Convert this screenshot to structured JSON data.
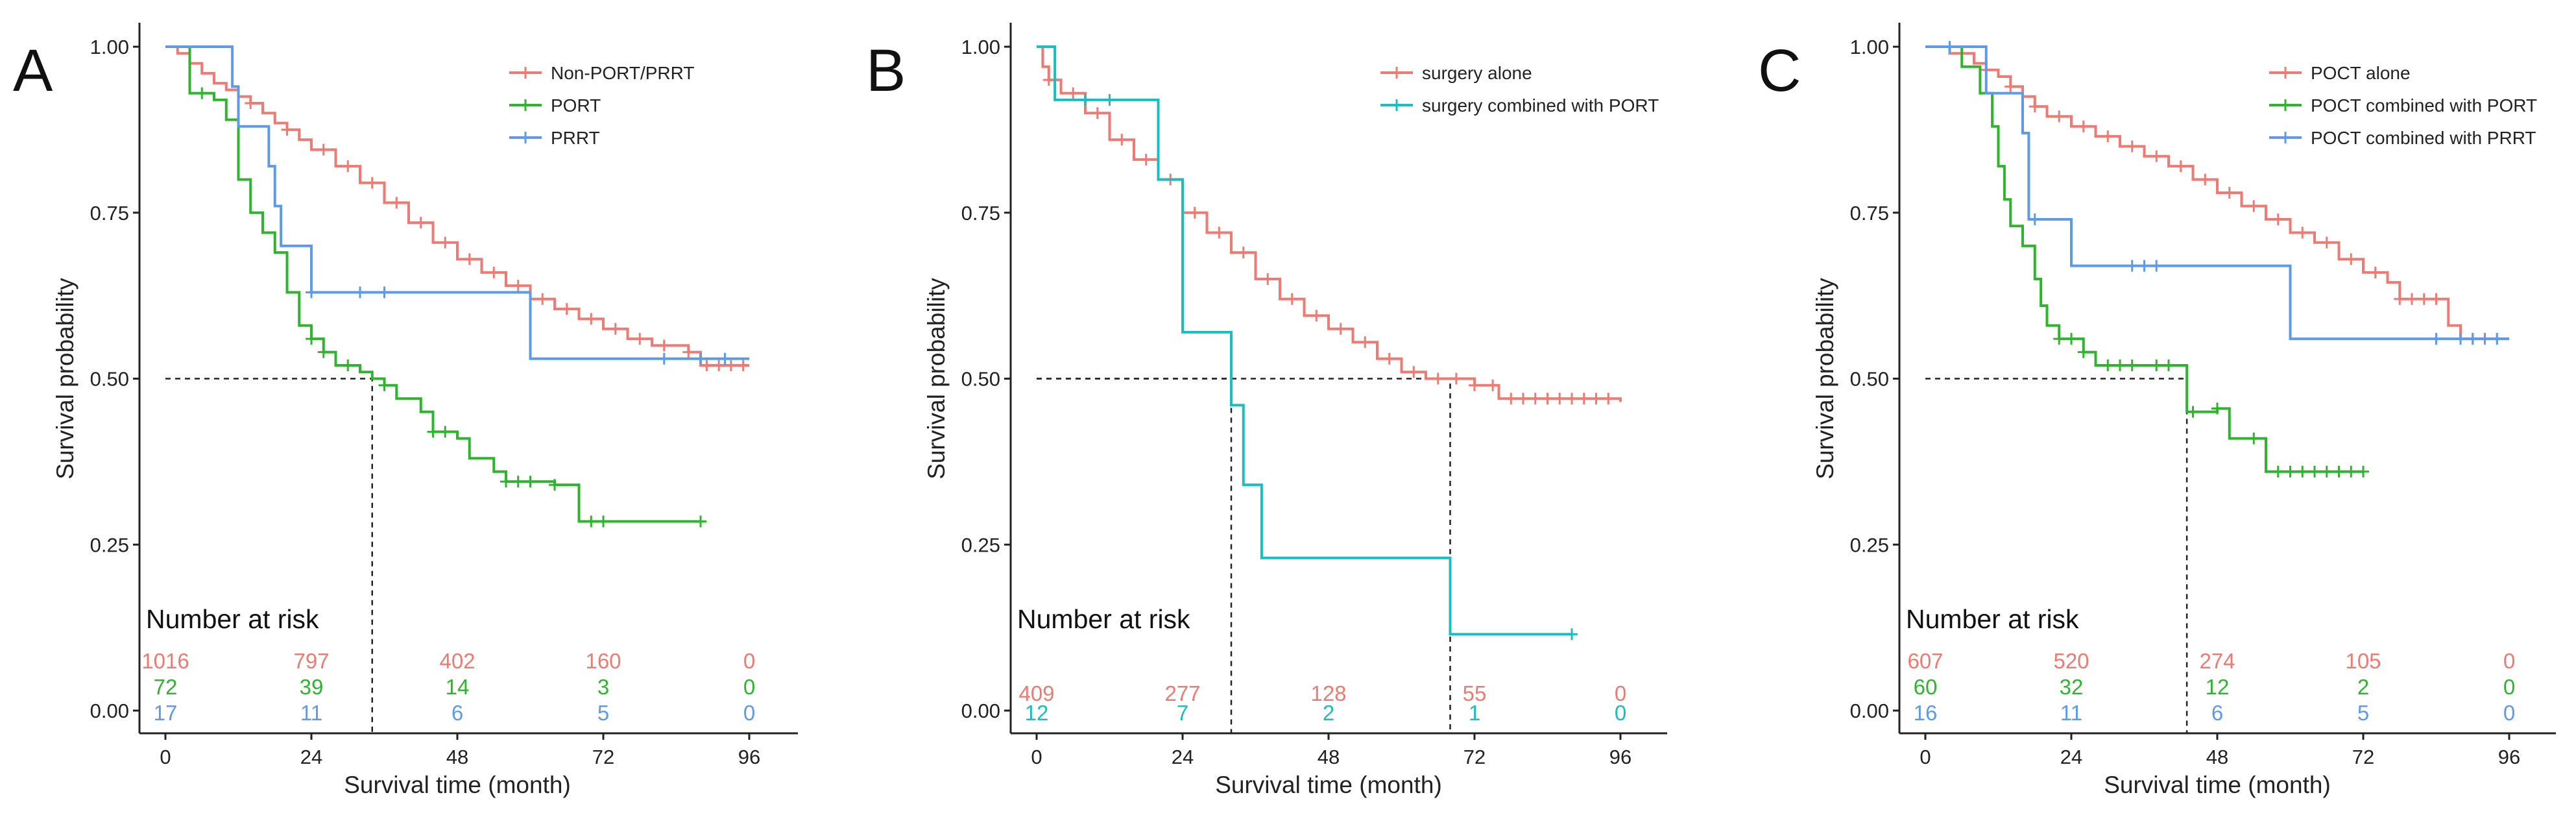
{
  "chart_data": [
    {
      "panel": "A",
      "type": "line",
      "subtype": "kaplan-meier",
      "xlabel": "Survival time (month)",
      "ylabel": "Survival probability",
      "xticks": [
        0,
        24,
        48,
        72,
        96
      ],
      "yticks": [
        "0.00",
        "0.25",
        "0.50",
        "0.75",
        "1.00"
      ],
      "xlim": [
        0,
        96
      ],
      "ylim": [
        0,
        1
      ],
      "legend_position": "top-right",
      "risk_table_title": "Number at risk",
      "risk_times": [
        0,
        24,
        48,
        72,
        96
      ],
      "median_lines": [
        {
          "y": 0.5,
          "x": 34
        }
      ],
      "series": [
        {
          "name": "Non-PORT/PRRT",
          "color": "#f07a72",
          "steps": [
            [
              0,
              1.0
            ],
            [
              2,
              0.99
            ],
            [
              4,
              0.975
            ],
            [
              6,
              0.96
            ],
            [
              8,
              0.945
            ],
            [
              10,
              0.935
            ],
            [
              12,
              0.925
            ],
            [
              14,
              0.915
            ],
            [
              16,
              0.9
            ],
            [
              18,
              0.885
            ],
            [
              20,
              0.875
            ],
            [
              22,
              0.86
            ],
            [
              24,
              0.845
            ],
            [
              28,
              0.82
            ],
            [
              32,
              0.795
            ],
            [
              36,
              0.765
            ],
            [
              40,
              0.735
            ],
            [
              44,
              0.705
            ],
            [
              48,
              0.68
            ],
            [
              52,
              0.66
            ],
            [
              56,
              0.64
            ],
            [
              60,
              0.62
            ],
            [
              64,
              0.605
            ],
            [
              68,
              0.59
            ],
            [
              72,
              0.575
            ],
            [
              76,
              0.56
            ],
            [
              80,
              0.55
            ],
            [
              86,
              0.54
            ],
            [
              88,
              0.52
            ],
            [
              96,
              0.52
            ]
          ],
          "censors": [
            14,
            20,
            26,
            30,
            34,
            38,
            42,
            46,
            50,
            54,
            58,
            62,
            66,
            70,
            74,
            78,
            82,
            86,
            89,
            91,
            93,
            95
          ],
          "at_risk": [
            "1016",
            "797",
            "402",
            "160",
            "0"
          ]
        },
        {
          "name": "PORT",
          "color": "#2db52d",
          "steps": [
            [
              0,
              1.0
            ],
            [
              4,
              0.93
            ],
            [
              8,
              0.92
            ],
            [
              10,
              0.89
            ],
            [
              12,
              0.8
            ],
            [
              14,
              0.75
            ],
            [
              16,
              0.72
            ],
            [
              18,
              0.69
            ],
            [
              20,
              0.63
            ],
            [
              22,
              0.58
            ],
            [
              24,
              0.56
            ],
            [
              26,
              0.54
            ],
            [
              28,
              0.52
            ],
            [
              32,
              0.51
            ],
            [
              34,
              0.5
            ],
            [
              36,
              0.49
            ],
            [
              38,
              0.47
            ],
            [
              42,
              0.45
            ],
            [
              44,
              0.42
            ],
            [
              48,
              0.41
            ],
            [
              50,
              0.38
            ],
            [
              54,
              0.36
            ],
            [
              56,
              0.345
            ],
            [
              64,
              0.34
            ],
            [
              68,
              0.285
            ],
            [
              88,
              0.285
            ]
          ],
          "censors": [
            6,
            24,
            26,
            30,
            36,
            44,
            46,
            56,
            58,
            60,
            64,
            70,
            72,
            88
          ],
          "at_risk": [
            "72",
            "39",
            "14",
            "3",
            "0"
          ]
        },
        {
          "name": "PRRT",
          "color": "#5d9bea",
          "steps": [
            [
              0,
              1.0
            ],
            [
              11,
              0.94
            ],
            [
              12,
              0.88
            ],
            [
              17,
              0.82
            ],
            [
              18,
              0.76
            ],
            [
              19,
              0.7
            ],
            [
              24,
              0.63
            ],
            [
              59,
              0.63
            ],
            [
              60,
              0.53
            ],
            [
              96,
              0.53
            ]
          ],
          "censors": [
            24,
            32,
            36,
            82,
            88,
            92
          ],
          "at_risk": [
            "17",
            "11",
            "6",
            "5",
            "0"
          ]
        }
      ]
    },
    {
      "panel": "B",
      "type": "line",
      "subtype": "kaplan-meier",
      "xlabel": "Survival time (month)",
      "ylabel": "Survival probability",
      "xticks": [
        0,
        24,
        48,
        72,
        96
      ],
      "yticks": [
        "0.00",
        "0.25",
        "0.50",
        "0.75",
        "1.00"
      ],
      "xlim": [
        0,
        96
      ],
      "ylim": [
        0,
        1
      ],
      "legend_position": "top-right",
      "risk_table_title": "Number at risk",
      "risk_times": [
        0,
        24,
        48,
        72,
        96
      ],
      "median_lines": [
        {
          "y": 0.5,
          "x": 32
        },
        {
          "y": 0.5,
          "x": 68
        }
      ],
      "series": [
        {
          "name": "surgery alone",
          "color": "#f07a72",
          "steps": [
            [
              0,
              1.0
            ],
            [
              1,
              0.97
            ],
            [
              2,
              0.95
            ],
            [
              4,
              0.93
            ],
            [
              8,
              0.9
            ],
            [
              12,
              0.86
            ],
            [
              16,
              0.83
            ],
            [
              20,
              0.8
            ],
            [
              24,
              0.75
            ],
            [
              28,
              0.72
            ],
            [
              32,
              0.69
            ],
            [
              36,
              0.65
            ],
            [
              40,
              0.62
            ],
            [
              44,
              0.595
            ],
            [
              48,
              0.575
            ],
            [
              52,
              0.555
            ],
            [
              56,
              0.53
            ],
            [
              60,
              0.51
            ],
            [
              64,
              0.5
            ],
            [
              72,
              0.49
            ],
            [
              76,
              0.47
            ],
            [
              96,
              0.465
            ]
          ],
          "censors": [
            2,
            6,
            10,
            14,
            18,
            22,
            26,
            30,
            34,
            38,
            42,
            46,
            50,
            54,
            58,
            62,
            66,
            69,
            72,
            75,
            78,
            80,
            82,
            84,
            86,
            88,
            90,
            92,
            94
          ],
          "at_risk": [
            "409",
            "277",
            "128",
            "55",
            "0"
          ]
        },
        {
          "name": "surgery combined with PORT",
          "color": "#17bfbf",
          "steps": [
            [
              0,
              1.0
            ],
            [
              3,
              0.92
            ],
            [
              20,
              0.8
            ],
            [
              24,
              0.57
            ],
            [
              32,
              0.46
            ],
            [
              34,
              0.34
            ],
            [
              37,
              0.23
            ],
            [
              68,
              0.115
            ],
            [
              88,
              0.115
            ]
          ],
          "censors": [
            8,
            12,
            88
          ],
          "at_risk": [
            "12",
            "7",
            "2",
            "1",
            "0"
          ]
        }
      ]
    },
    {
      "panel": "C",
      "type": "line",
      "subtype": "kaplan-meier",
      "xlabel": "Survival time (month)",
      "ylabel": "Survival probability",
      "xticks": [
        0,
        24,
        48,
        72,
        96
      ],
      "yticks": [
        "0.00",
        "0.25",
        "0.50",
        "0.75",
        "1.00"
      ],
      "xlim": [
        0,
        96
      ],
      "ylim": [
        0,
        1
      ],
      "legend_position": "top-right",
      "risk_table_title": "Number at risk",
      "risk_times": [
        0,
        24,
        48,
        72,
        96
      ],
      "median_lines": [
        {
          "y": 0.5,
          "x": 43
        }
      ],
      "series": [
        {
          "name": "POCT alone",
          "color": "#f07a72",
          "steps": [
            [
              0,
              1.0
            ],
            [
              4,
              0.99
            ],
            [
              8,
              0.975
            ],
            [
              10,
              0.965
            ],
            [
              12,
              0.955
            ],
            [
              14,
              0.94
            ],
            [
              16,
              0.925
            ],
            [
              18,
              0.91
            ],
            [
              20,
              0.895
            ],
            [
              24,
              0.88
            ],
            [
              28,
              0.865
            ],
            [
              32,
              0.85
            ],
            [
              36,
              0.835
            ],
            [
              40,
              0.82
            ],
            [
              44,
              0.8
            ],
            [
              48,
              0.78
            ],
            [
              52,
              0.76
            ],
            [
              56,
              0.74
            ],
            [
              60,
              0.72
            ],
            [
              64,
              0.705
            ],
            [
              68,
              0.68
            ],
            [
              72,
              0.66
            ],
            [
              76,
              0.645
            ],
            [
              78,
              0.62
            ],
            [
              84,
              0.62
            ],
            [
              86,
              0.58
            ],
            [
              88,
              0.56
            ],
            [
              96,
              0.56
            ]
          ],
          "censors": [
            6,
            10,
            14,
            18,
            22,
            26,
            30,
            34,
            38,
            42,
            46,
            50,
            54,
            58,
            62,
            66,
            70,
            74,
            78,
            80,
            82,
            84,
            90,
            92,
            94
          ],
          "at_risk": [
            "607",
            "520",
            "274",
            "105",
            "0"
          ]
        },
        {
          "name": "POCT combined with PORT",
          "color": "#2db52d",
          "steps": [
            [
              0,
              1.0
            ],
            [
              6,
              0.97
            ],
            [
              9,
              0.93
            ],
            [
              11,
              0.88
            ],
            [
              12,
              0.82
            ],
            [
              13,
              0.77
            ],
            [
              14,
              0.73
            ],
            [
              16,
              0.7
            ],
            [
              18,
              0.65
            ],
            [
              19,
              0.61
            ],
            [
              20,
              0.58
            ],
            [
              22,
              0.56
            ],
            [
              26,
              0.54
            ],
            [
              28,
              0.52
            ],
            [
              40,
              0.52
            ],
            [
              43,
              0.45
            ],
            [
              48,
              0.455
            ],
            [
              50,
              0.41
            ],
            [
              54,
              0.41
            ],
            [
              56,
              0.36
            ],
            [
              72,
              0.36
            ]
          ],
          "censors": [
            22,
            24,
            26,
            30,
            32,
            34,
            38,
            40,
            44,
            48,
            54,
            58,
            60,
            62,
            64,
            66,
            68,
            70,
            72
          ],
          "at_risk": [
            "60",
            "32",
            "12",
            "2",
            "0"
          ]
        },
        {
          "name": "POCT combined with PRRT",
          "color": "#5d9bea",
          "steps": [
            [
              0,
              1.0
            ],
            [
              10,
              0.93
            ],
            [
              16,
              0.87
            ],
            [
              17,
              0.74
            ],
            [
              24,
              0.67
            ],
            [
              59,
              0.67
            ],
            [
              60,
              0.56
            ],
            [
              96,
              0.56
            ]
          ],
          "censors": [
            4,
            18,
            34,
            36,
            38,
            84,
            88,
            90,
            92,
            94
          ],
          "at_risk": [
            "16",
            "11",
            "6",
            "5",
            "0"
          ]
        }
      ]
    }
  ],
  "panel_titles": [
    "A",
    "B",
    "C"
  ]
}
